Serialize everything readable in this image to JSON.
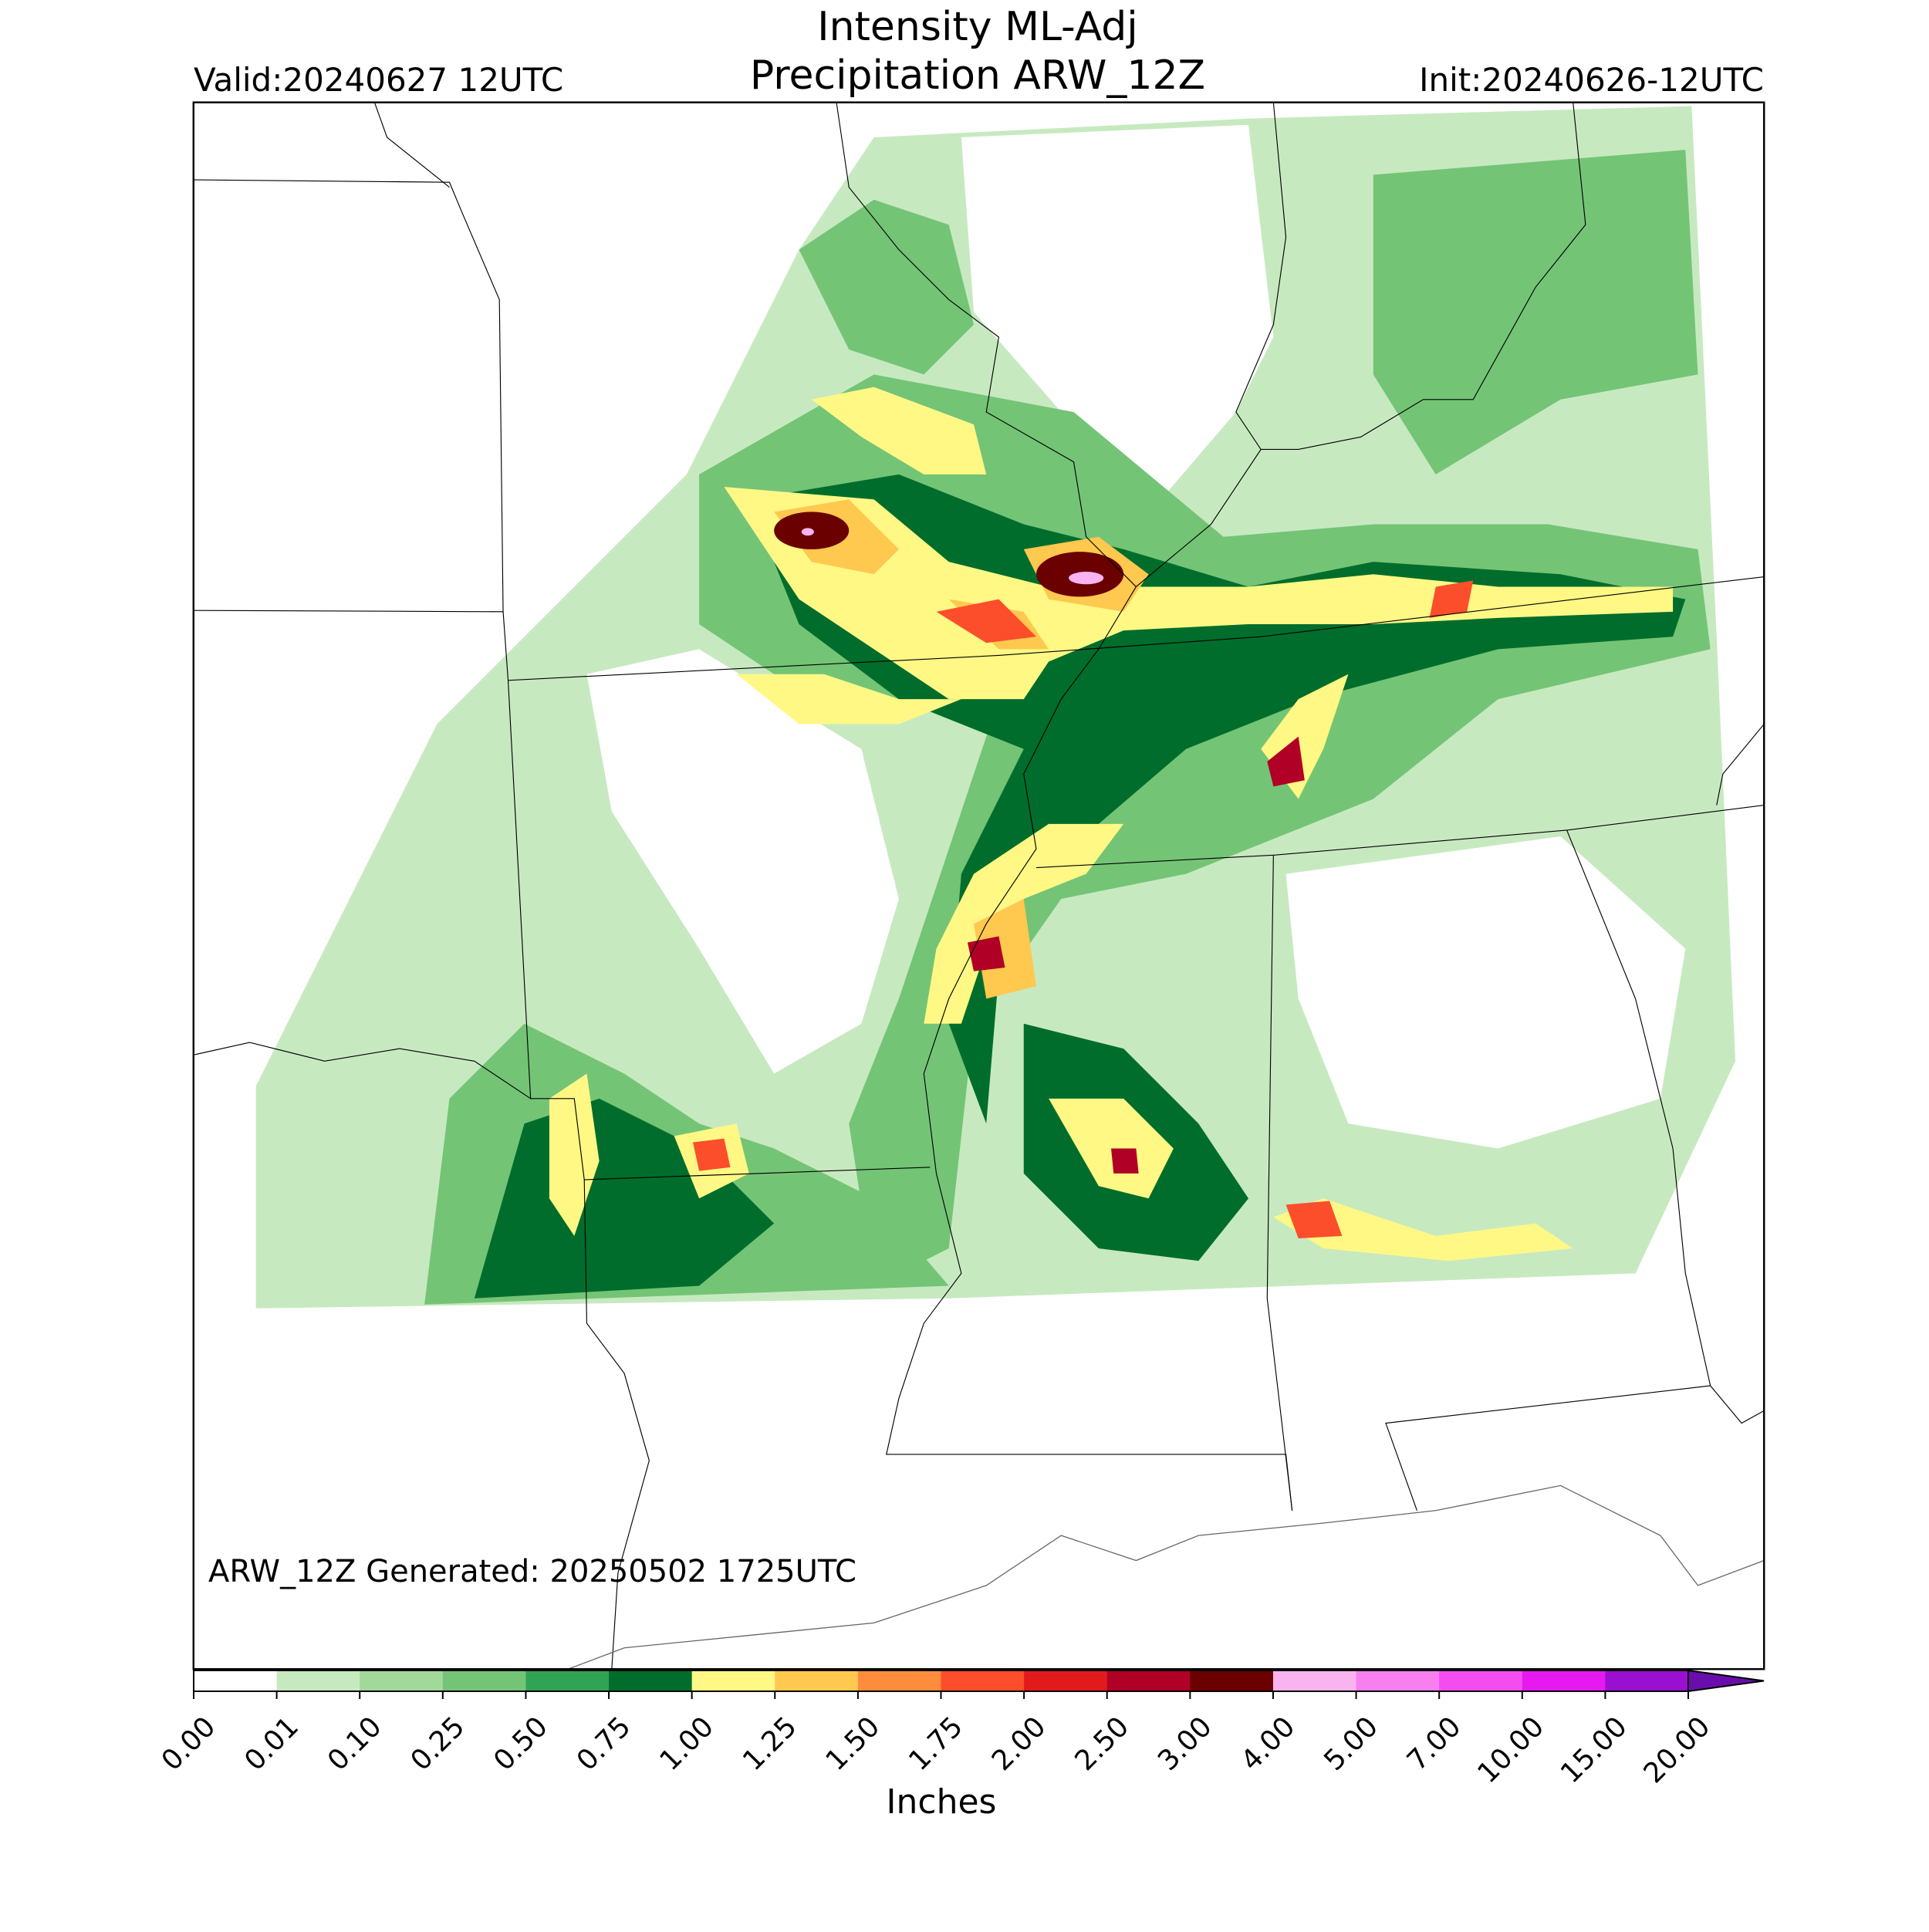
{
  "title": "Intensity ML-Adj",
  "subtitle": "Precipitation ARW_12Z",
  "valid": "Valid:20240627 12UTC",
  "init": "Init:20240626-12UTC",
  "generated": "ARW_12Z Generated: 20250502 1725UTC",
  "colorbar": {
    "label": "Inches",
    "ticks": [
      {
        "value": 0,
        "label": "0.00"
      },
      {
        "value": 0.01,
        "label": "0.01"
      },
      {
        "value": 0.1,
        "label": "0.10"
      },
      {
        "value": 0.25,
        "label": "0.25"
      },
      {
        "value": 0.5,
        "label": "0.50"
      },
      {
        "value": 0.75,
        "label": "0.75"
      },
      {
        "value": 1,
        "label": "1.00"
      },
      {
        "value": 1.25,
        "label": "1.25"
      },
      {
        "value": 1.5,
        "label": "1.50"
      },
      {
        "value": 1.75,
        "label": "1.75"
      },
      {
        "value": 2,
        "label": "2.00"
      },
      {
        "value": 2.5,
        "label": "2.50"
      },
      {
        "value": 3,
        "label": "3.00"
      },
      {
        "value": 4,
        "label": "4.00"
      },
      {
        "value": 5,
        "label": "5.00"
      },
      {
        "value": 7,
        "label": "7.00"
      },
      {
        "value": 10,
        "label": "10.00"
      },
      {
        "value": 15,
        "label": "15.00"
      },
      {
        "value": 20,
        "label": "20.00"
      }
    ],
    "colors": [
      "#ffffff",
      "#c7e9c0",
      "#a1d99b",
      "#74c476",
      "#31a354",
      "#006d2c",
      "#fff885",
      "#ffc84f",
      "#fd8d3c",
      "#fc4e2a",
      "#e31a1c",
      "#b10026",
      "#6a0000",
      "#f9b3f0",
      "#f77ff0",
      "#f44cf0",
      "#e619f0",
      "#9a10d0"
    ],
    "extend_color": "#6a0dad"
  }
}
